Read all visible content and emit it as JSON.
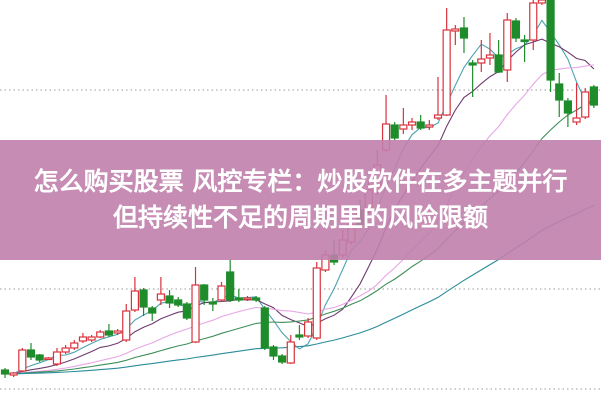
{
  "title": {
    "line1": "怎么购买股票 风控专栏：炒股软件在多主题并行",
    "line2": "但持续性不足的周期里的风险限额"
  },
  "colors": {
    "up": "#d8323c",
    "down": "#1e8c2a",
    "banner": "#c58cb3",
    "ma5": "#4aa3b0",
    "ma10": "#6e3b6e",
    "ma20": "#e8a6e6",
    "ma30": "#3f8f5a",
    "ma60": "#2a8c98",
    "grid": "#999999"
  },
  "chart_data": {
    "type": "candlestick",
    "grid_levels": [
      310,
      111,
      11
    ],
    "moving_averages": [
      5,
      10,
      20,
      30,
      60
    ],
    "ohlc": [
      [
        30,
        32,
        22,
        26
      ],
      [
        25,
        28,
        23,
        27
      ],
      [
        29,
        52,
        28,
        50
      ],
      [
        50,
        57,
        40,
        43
      ],
      [
        45,
        46,
        38,
        40
      ],
      [
        41,
        43,
        40,
        42
      ],
      [
        36,
        52,
        34,
        48
      ],
      [
        48,
        55,
        46,
        52
      ],
      [
        52,
        60,
        50,
        57
      ],
      [
        59,
        67,
        57,
        63
      ],
      [
        60,
        65,
        58,
        63
      ],
      [
        63,
        70,
        62,
        68
      ],
      [
        69,
        76,
        63,
        65
      ],
      [
        67,
        71,
        65,
        69
      ],
      [
        60,
        96,
        58,
        89
      ],
      [
        90,
        123,
        88,
        109
      ],
      [
        110,
        112,
        84,
        93
      ],
      [
        92,
        94,
        79,
        87
      ],
      [
        100,
        123,
        95,
        106
      ],
      [
        104,
        110,
        92,
        97
      ],
      [
        100,
        103,
        93,
        95
      ],
      [
        96,
        98,
        80,
        82
      ],
      [
        58,
        133,
        57,
        115
      ],
      [
        115,
        116,
        95,
        100
      ],
      [
        98,
        102,
        89,
        96
      ],
      [
        100,
        118,
        98,
        114
      ],
      [
        128,
        140,
        98,
        100
      ],
      [
        102,
        111,
        98,
        100
      ],
      [
        101,
        104,
        99,
        102
      ],
      [
        102,
        104,
        98,
        100
      ],
      [
        92,
        94,
        50,
        52
      ],
      [
        53,
        55,
        40,
        44
      ],
      [
        44,
        46,
        36,
        38
      ],
      [
        37,
        65,
        36,
        58
      ],
      [
        65,
        75,
        60,
        63
      ],
      [
        64,
        82,
        62,
        78
      ],
      [
        62,
        138,
        60,
        132
      ],
      [
        130,
        150,
        128,
        145
      ],
      [
        145,
        160,
        135,
        138
      ],
      [
        145,
        170,
        142,
        160
      ],
      [
        158,
        185,
        155,
        175
      ],
      [
        190,
        200,
        172,
        175
      ],
      [
        188,
        220,
        186,
        210
      ],
      [
        208,
        250,
        205,
        235
      ],
      [
        250,
        305,
        248,
        276
      ],
      [
        275,
        278,
        260,
        262
      ],
      [
        271,
        292,
        266,
        275
      ],
      [
        275,
        282,
        270,
        278
      ],
      [
        278,
        285,
        270,
        272
      ],
      [
        273,
        280,
        270,
        275
      ],
      [
        282,
        323,
        280,
        285
      ],
      [
        285,
        392,
        284,
        370
      ],
      [
        369,
        375,
        355,
        371
      ],
      [
        372,
        383,
        347,
        362
      ],
      [
        337,
        340,
        303,
        335
      ],
      [
        337,
        360,
        328,
        341
      ],
      [
        342,
        367,
        335,
        345
      ],
      [
        345,
        360,
        327,
        328
      ],
      [
        330,
        387,
        318,
        380
      ],
      [
        379,
        382,
        358,
        362
      ],
      [
        360,
        365,
        338,
        359
      ],
      [
        360,
        400,
        350,
        397
      ],
      [
        397,
        400,
        395,
        400
      ],
      [
        400,
        400,
        308,
        320
      ],
      [
        316,
        327,
        283,
        300
      ],
      [
        299,
        302,
        273,
        287
      ],
      [
        278,
        317,
        275,
        282
      ],
      [
        283,
        312,
        281,
        308
      ],
      [
        313,
        315,
        292,
        295
      ]
    ]
  }
}
